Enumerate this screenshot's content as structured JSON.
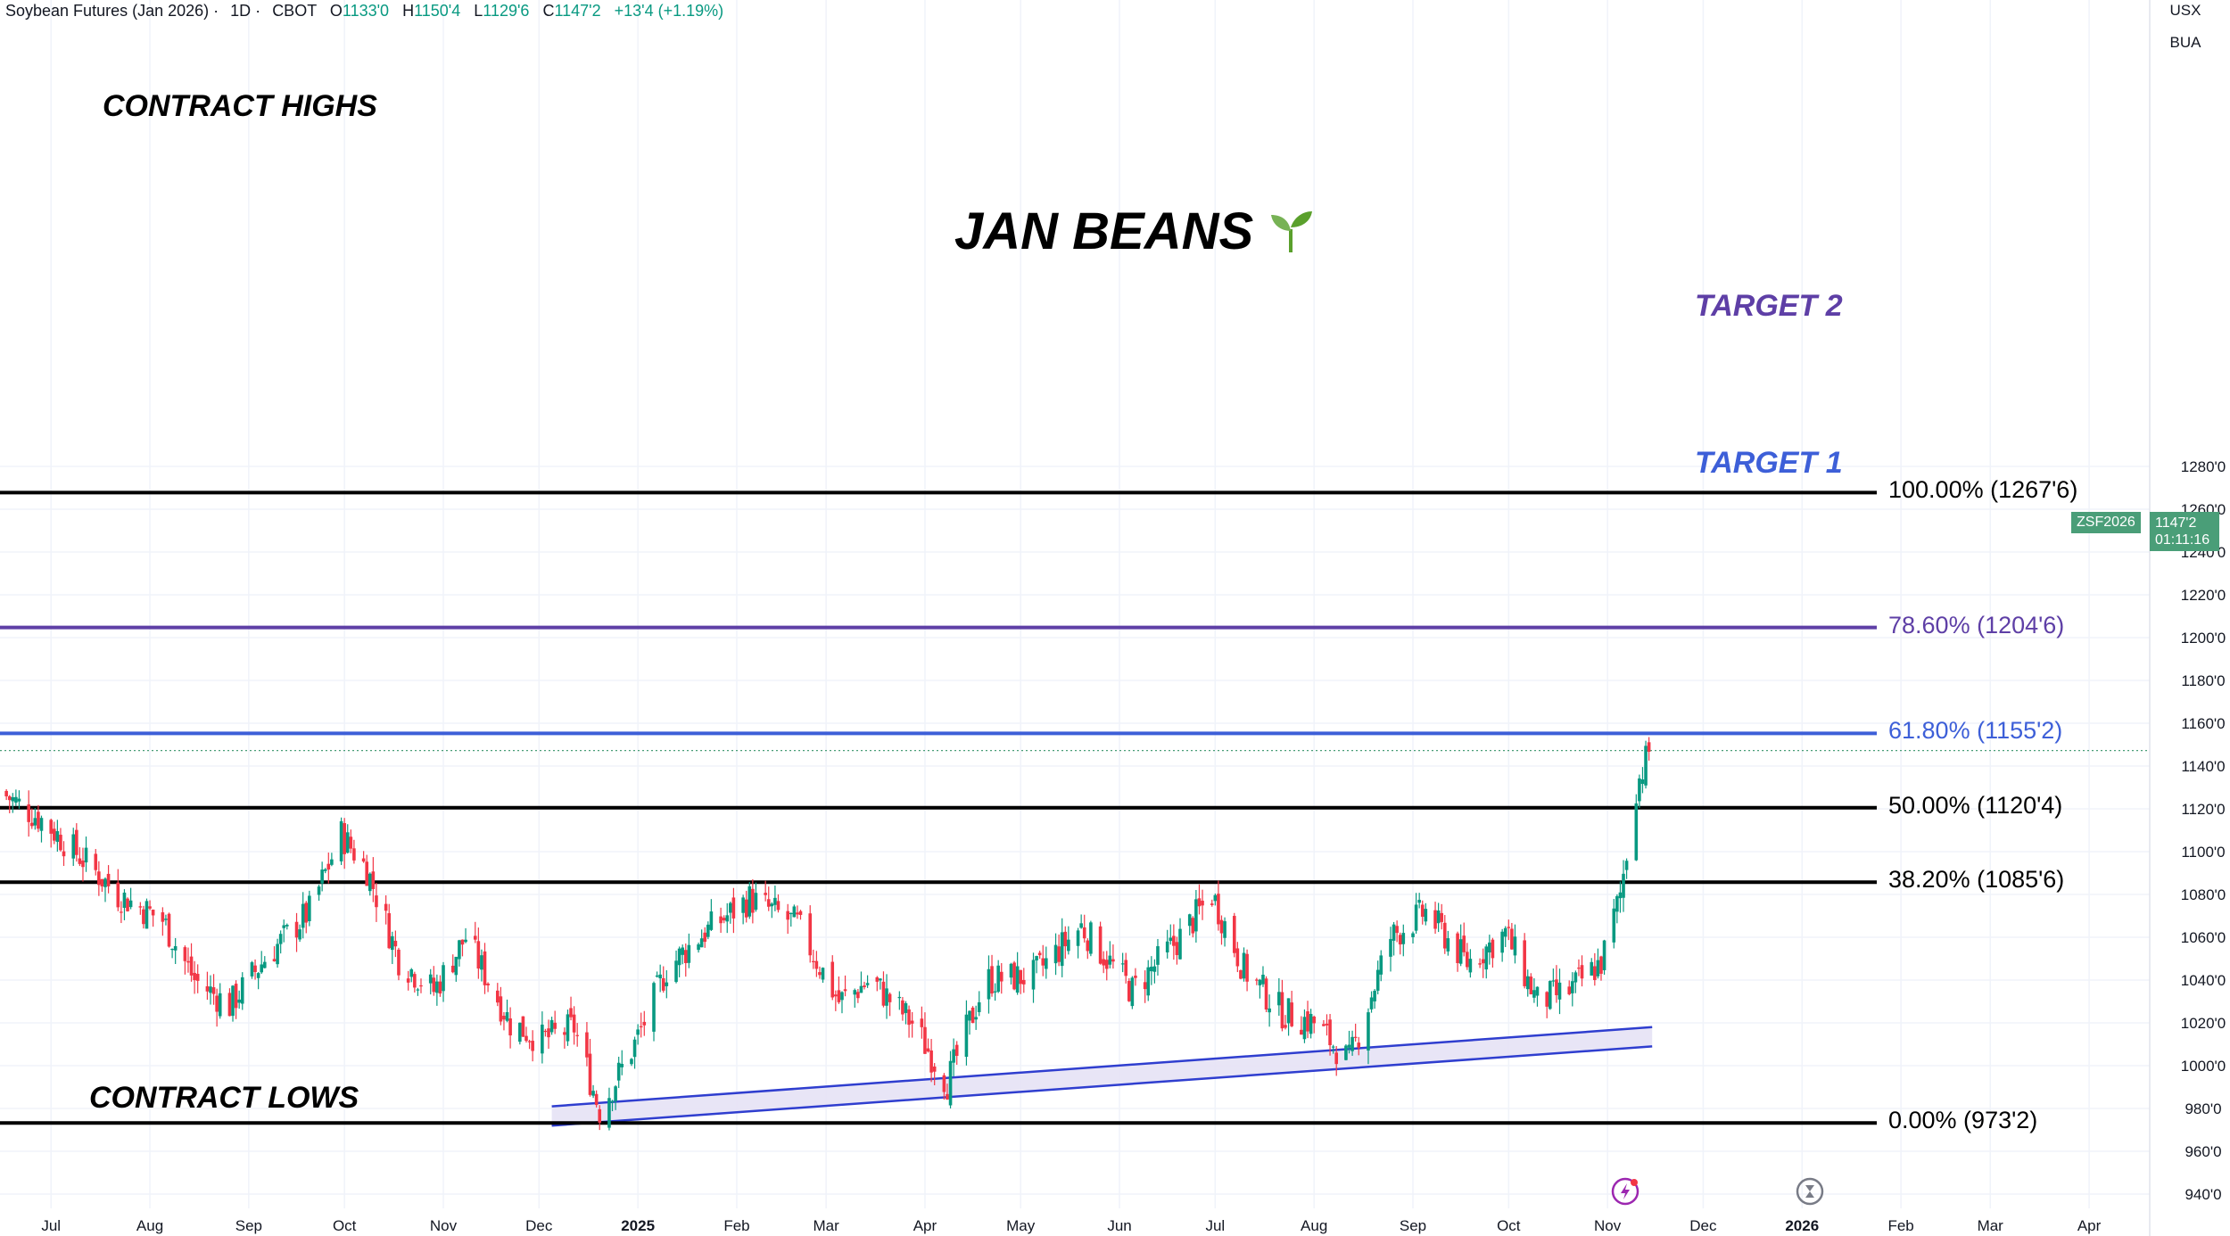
{
  "header": {
    "symbol": "Soybean Futures (Jan 2026)",
    "interval": "1D",
    "exchange": "CBOT",
    "open_label": "O",
    "open": "1133'0",
    "high_label": "H",
    "high": "1150'4",
    "low_label": "L",
    "low": "1129'6",
    "close_label": "C",
    "close": "1147'2",
    "change": "+13'4 (+1.19%)"
  },
  "units": {
    "line1": "USX",
    "line2": "BUA"
  },
  "annotations": {
    "title": "JAN BEANS",
    "contract_highs": "CONTRACT HIGHS",
    "contract_lows": "CONTRACT LOWS",
    "target1": "TARGET 1",
    "target2": "TARGET 2"
  },
  "price_badge": {
    "symbol": "ZSF2026",
    "price": "1147'2",
    "countdown": "01:11:16"
  },
  "colors": {
    "up": "#089981",
    "down": "#f23645",
    "fib": "#000000",
    "target1": "#3d5fd8",
    "target2": "#5e3fa6",
    "channel": "#2f3ecf",
    "channel_fill": "#e6e2f5"
  },
  "chart_data": {
    "type": "candlestick",
    "title": "JAN BEANS",
    "ylim": [
      930,
      1290
    ],
    "y_unit": "USX/BUA (cents per bushel, quarter-cent ticks)",
    "y_ticks": [
      "1280'0",
      "1260'0",
      "1240'0",
      "1220'0",
      "1200'0",
      "1180'0",
      "1160'0",
      "1140'0",
      "1120'0",
      "1100'0",
      "1080'0",
      "1060'0",
      "1040'0",
      "1020'0",
      "1000'0",
      "980'0",
      "960'0",
      "940'0"
    ],
    "x_ticks": [
      "Jul",
      "Aug",
      "Sep",
      "Oct",
      "Nov",
      "Dec",
      "2025",
      "Feb",
      "Mar",
      "Apr",
      "May",
      "Jun",
      "Jul",
      "Aug",
      "Sep",
      "Oct",
      "Nov",
      "Dec",
      "2026",
      "Feb",
      "Mar",
      "Apr"
    ],
    "x_range": [
      "2024-06-15",
      "2026-04-20"
    ],
    "fib_levels": [
      {
        "label": "100.00% (1267'6)",
        "price": 1267.75,
        "color": "#000000"
      },
      {
        "label": "78.60% (1204'6)",
        "price": 1204.75,
        "color": "#5e3fa6"
      },
      {
        "label": "61.80% (1155'2)",
        "price": 1155.25,
        "color": "#3d5fd8"
      },
      {
        "label": "50.00% (1120'4)",
        "price": 1120.5,
        "color": "#000000"
      },
      {
        "label": "38.20% (1085'6)",
        "price": 1085.75,
        "color": "#000000"
      },
      {
        "label": "0.00% (973'2)",
        "price": 973.25,
        "color": "#000000"
      }
    ],
    "last_price": 1147.25,
    "channel": {
      "upper": [
        [
          "2024-12-05",
          981
        ],
        [
          "2025-11-15",
          1018
        ]
      ],
      "lower": [
        [
          "2024-12-05",
          972
        ],
        [
          "2025-11-15",
          1009
        ]
      ]
    },
    "close_path": [
      [
        "2024-06-15",
        1128
      ],
      [
        "2024-06-28",
        1115
      ],
      [
        "2024-07-10",
        1098
      ],
      [
        "2024-07-22",
        1080
      ],
      [
        "2024-08-05",
        1068
      ],
      [
        "2024-08-15",
        1040
      ],
      [
        "2024-08-26",
        1028
      ],
      [
        "2024-09-06",
        1050
      ],
      [
        "2024-09-20",
        1072
      ],
      [
        "2024-09-30",
        1108
      ],
      [
        "2024-10-08",
        1092
      ],
      [
        "2024-10-18",
        1050
      ],
      [
        "2024-10-29",
        1035
      ],
      [
        "2024-11-08",
        1060
      ],
      [
        "2024-11-22",
        1020
      ],
      [
        "2024-12-02",
        1012
      ],
      [
        "2024-12-12",
        1018
      ],
      [
        "2024-12-20",
        979
      ],
      [
        "2024-12-31",
        1010
      ],
      [
        "2025-01-10",
        1045
      ],
      [
        "2025-01-20",
        1060
      ],
      [
        "2025-02-05",
        1078
      ],
      [
        "2025-02-20",
        1066
      ],
      [
        "2025-03-05",
        1030
      ],
      [
        "2025-03-15",
        1040
      ],
      [
        "2025-03-28",
        1020
      ],
      [
        "2025-04-08",
        992
      ],
      [
        "2025-04-20",
        1040
      ],
      [
        "2025-05-05",
        1042
      ],
      [
        "2025-05-20",
        1065
      ],
      [
        "2025-06-05",
        1035
      ],
      [
        "2025-06-20",
        1060
      ],
      [
        "2025-06-30",
        1080
      ],
      [
        "2025-07-10",
        1045
      ],
      [
        "2025-07-22",
        1025
      ],
      [
        "2025-08-01",
        1020
      ],
      [
        "2025-08-12",
        1002
      ],
      [
        "2025-08-25",
        1060
      ],
      [
        "2025-09-05",
        1072
      ],
      [
        "2025-09-18",
        1048
      ],
      [
        "2025-09-30",
        1062
      ],
      [
        "2025-10-10",
        1030
      ],
      [
        "2025-10-20",
        1035
      ],
      [
        "2025-10-30",
        1048
      ],
      [
        "2025-11-05",
        1080
      ],
      [
        "2025-11-10",
        1130
      ],
      [
        "2025-11-14",
        1147
      ]
    ]
  }
}
